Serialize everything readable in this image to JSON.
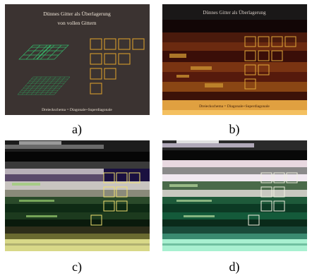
{
  "figure": {
    "panel_a": {
      "caption": "a)",
      "title_line1": "Dünnes Gitter als Überlagerung",
      "title_line2": "von vollen Gittern",
      "footer": "Dreieckschema = Diagonale+Superdiagonale"
    },
    "panel_b": {
      "caption": "b)",
      "title": "Dünnes Gitter als Überlagerung",
      "footer": "Dreieckschema = Diagonale+Superdiagonale"
    },
    "panel_c": {
      "caption": "c)"
    },
    "panel_d": {
      "caption": "d)"
    }
  }
}
